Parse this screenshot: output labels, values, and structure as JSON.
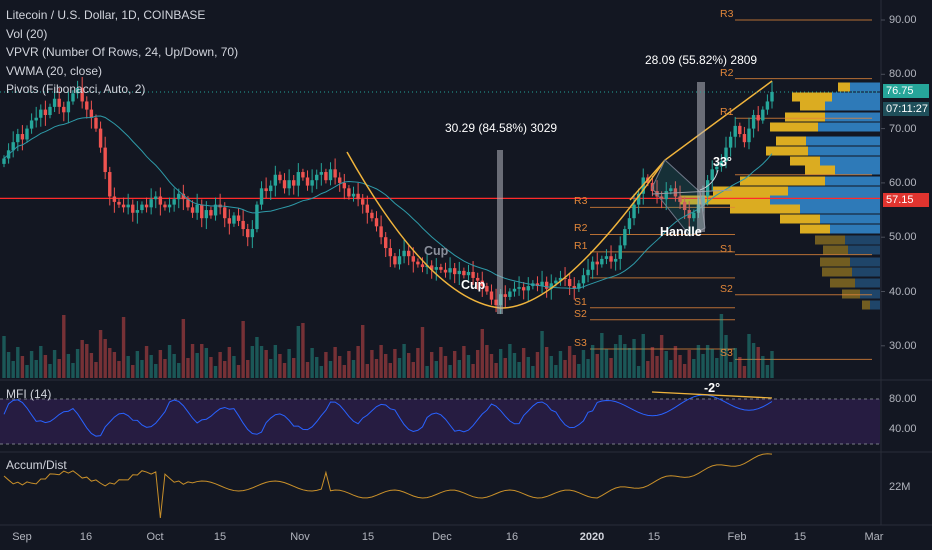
{
  "legend": {
    "main": "Litecoin / U.S. Dollar, 1D, COINBASE",
    "vol": "Vol (20)",
    "vpvr": "VPVR (Number Of Rows, 24, Up/Down, 70)",
    "vwma": "VWMA (20, close)",
    "pivots": "Pivots (Fibonacci, Auto, 2)"
  },
  "panes": {
    "mfi": "MFI (14)",
    "accum": "Accum/Dist"
  },
  "annotations": {
    "measure1": "30.29 (84.58%) 3029",
    "measure2": "28.09 (55.82%) 2809",
    "cup": "Cup",
    "cup2": "Cup",
    "handle": "Handle",
    "angle1": "33°",
    "angle2": "-2°"
  },
  "price_tags": {
    "last": "76.75",
    "countdown": "07:11:27",
    "level": "57.15"
  },
  "colors": {
    "background": "#131722",
    "up": "#26a69a",
    "down": "#ef5350",
    "pivot": "#e0863a",
    "vwma": "#2e9aa8",
    "pattern": "#f0b43c",
    "vpvr_up": "#2f7fc1",
    "vpvr_down": "#e6b422",
    "mfi": "#2962ff",
    "accum": "#c9902a",
    "hline": "#ff2b2b"
  },
  "chart_data": {
    "type": "candlestick",
    "title": "Litecoin / U.S. Dollar, 1D, COINBASE",
    "x_ticks": [
      "Sep",
      "16",
      "Oct",
      "15",
      "Nov",
      "15",
      "Dec",
      "16",
      "2020",
      "15",
      "Feb",
      "15",
      "Mar"
    ],
    "price_axis": {
      "ticks": [
        90,
        80,
        70,
        60,
        50,
        40,
        30
      ],
      "range": [
        25,
        94
      ]
    },
    "mfi_axis": {
      "ticks": [
        80,
        40
      ]
    },
    "accum_axis": {
      "ticks": [
        "22M"
      ]
    },
    "last_price": 76.75,
    "horizontal_level": 57.15,
    "approx_closes": [
      64.5,
      66.0,
      67.5,
      69.0,
      68.0,
      70.0,
      71.5,
      72.0,
      73.5,
      72.5,
      74.0,
      75.5,
      74.0,
      73.0,
      75.0,
      76.5,
      77.5,
      75.0,
      73.5,
      72.0,
      70.0,
      66.5,
      62.0,
      57.5,
      56.5,
      56.0,
      55.5,
      56.0,
      54.5,
      55.0,
      56.0,
      55.5,
      57.0,
      57.5,
      56.0,
      55.5,
      56.0,
      57.0,
      58.0,
      57.0,
      55.5,
      54.5,
      56.0,
      53.5,
      55.0,
      54.0,
      56.0,
      55.5,
      53.5,
      52.5,
      54.0,
      53.0,
      51.5,
      50.0,
      51.5,
      56.0,
      59.0,
      58.5,
      59.5,
      61.5,
      60.5,
      59.0,
      60.5,
      59.5,
      62.0,
      61.0,
      59.5,
      60.5,
      61.5,
      62.0,
      60.5,
      62.5,
      61.0,
      60.0,
      59.0,
      57.5,
      58.0,
      57.0,
      56.0,
      54.5,
      53.5,
      52.0,
      50.0,
      48.0,
      46.5,
      45.0,
      46.5,
      47.5,
      46.5,
      45.5,
      45.0,
      44.5,
      44.8,
      44.0,
      44.5,
      44.0,
      43.5,
      44.3,
      43.2,
      43.8,
      43.0,
      43.6,
      42.5,
      42.0,
      41.0,
      40.0,
      38.5,
      37.5,
      39.5,
      39.0,
      40.0,
      40.5,
      40.8,
      40.2,
      41.0,
      41.5,
      41.0,
      41.8,
      40.5,
      41.5,
      42.0,
      42.5,
      42.3,
      41.0,
      40.5,
      41.5,
      43.0,
      44.0,
      45.5,
      45.0,
      46.0,
      46.5,
      45.5,
      46.0,
      48.5,
      51.5,
      53.5,
      56.0,
      58.0,
      61.0,
      60.0,
      58.5,
      57.5,
      57.0,
      58.5,
      59.0,
      57.5,
      56.5,
      55.0,
      53.5,
      54.5,
      56.0,
      57.5,
      60.5,
      62.5,
      63.0,
      64.0,
      66.5,
      68.5,
      70.5,
      69.0,
      67.5,
      70.0,
      72.5,
      71.5,
      73.5,
      75.0,
      76.75
    ],
    "pivot_levels_left": {
      "R3": 55.5,
      "R2": 50.5,
      "R1": 47.3,
      "P": 42.5,
      "S1": 37.0,
      "S2": 34.8,
      "S3": 29.4
    },
    "pivot_levels_right": {
      "R3": 90.0,
      "R2": 79.2,
      "R1": 71.9,
      "P": 61.5,
      "S1": 46.8,
      "S2": 39.4,
      "S3": 27.5
    }
  }
}
